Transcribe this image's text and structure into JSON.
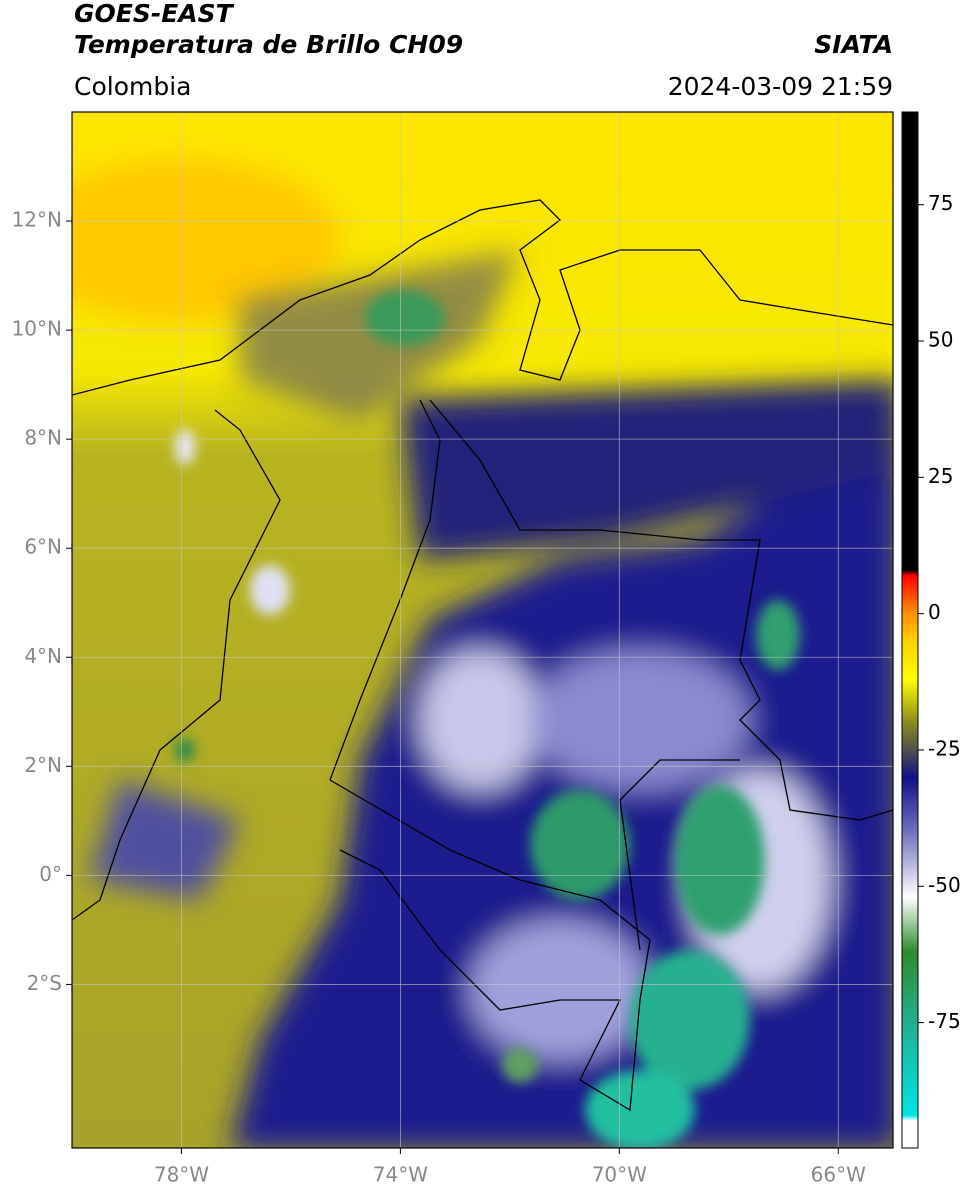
{
  "header": {
    "title": "GOES-EAST",
    "subtitle": "Temperatura de Brillo CH09",
    "source": "SIATA",
    "region": "Colombia",
    "datetime": "2024-03-09 21:59"
  },
  "map": {
    "xlim": [
      -80,
      -65
    ],
    "ylim": [
      -5,
      14
    ],
    "xticks": [
      {
        "value": -78,
        "label": "78°W"
      },
      {
        "value": -74,
        "label": "74°W"
      },
      {
        "value": -70,
        "label": "70°W"
      },
      {
        "value": -66,
        "label": "66°W"
      }
    ],
    "yticks": [
      {
        "value": 12,
        "label": "12°N"
      },
      {
        "value": 10,
        "label": "10°N"
      },
      {
        "value": 8,
        "label": "8°N"
      },
      {
        "value": 6,
        "label": "6°N"
      },
      {
        "value": 4,
        "label": "4°N"
      },
      {
        "value": 2,
        "label": "2°N"
      },
      {
        "value": 0,
        "label": "0°"
      },
      {
        "value": -2,
        "label": "2°S"
      }
    ],
    "grid": true
  },
  "colorbar": {
    "lim": [
      -98,
      92
    ],
    "ticks": [
      75,
      50,
      25,
      0,
      -25,
      -50,
      -75
    ],
    "stops": [
      {
        "value": -98,
        "color": "#ffffff"
      },
      {
        "value": -93,
        "color": "#ffffff"
      },
      {
        "value": -92,
        "color": "#00e5e5"
      },
      {
        "value": -75,
        "color": "#20b090"
      },
      {
        "value": -62,
        "color": "#2e8b2e"
      },
      {
        "value": -52,
        "color": "#ffffff"
      },
      {
        "value": -40,
        "color": "#7070c0"
      },
      {
        "value": -30,
        "color": "#10108a"
      },
      {
        "value": -25,
        "color": "#505050"
      },
      {
        "value": -20,
        "color": "#8a8a20"
      },
      {
        "value": -12,
        "color": "#ffff00"
      },
      {
        "value": -5,
        "color": "#ffd000"
      },
      {
        "value": 0,
        "color": "#ff9000"
      },
      {
        "value": 7,
        "color": "#ff0000"
      },
      {
        "value": 8,
        "color": "#000000"
      },
      {
        "value": 92,
        "color": "#000000"
      }
    ]
  }
}
